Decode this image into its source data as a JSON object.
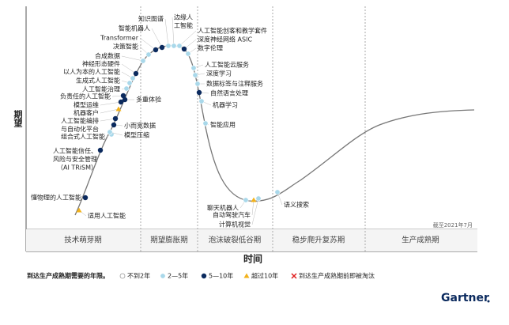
{
  "title_y": "期望",
  "title_x": "时间",
  "note": "截至2021年7月",
  "phases": [
    "技术萌芽期",
    "期望膨胀期",
    "泡沫破裂低谷期",
    "稳步爬升复苏期",
    "生产成熟期"
  ],
  "legend": {
    "title": "到达生产成熟期需要的年限。",
    "items": [
      "不到2年",
      "2—5年",
      "5—10年",
      "超过10年",
      "到达生产成熟期前即被淘汰"
    ]
  },
  "logo": "Gartner",
  "nodes": [
    {
      "lines": [
        "知识图谱"
      ],
      "years": "2—5年"
    },
    {
      "lines": [
        "智能机器人"
      ],
      "years": "5—10年"
    },
    {
      "lines": [
        "Transformer"
      ],
      "years": "5—10年"
    },
    {
      "lines": [
        "决策智能"
      ],
      "years": "2—5年"
    },
    {
      "lines": [
        "合成数据"
      ],
      "years": "2—5年"
    },
    {
      "lines": [
        "神经形态硬件"
      ],
      "years": "5—10年"
    },
    {
      "lines": [
        "以人为本的人工智能"
      ],
      "years": "2—5年"
    },
    {
      "lines": [
        "生成式人工智能"
      ],
      "years": "2—5年"
    },
    {
      "lines": [
        "人工智能治理"
      ],
      "years": "2—5年"
    },
    {
      "lines": [
        "负责任的人工智能"
      ],
      "years": "5—10年"
    },
    {
      "lines": [
        "多重体验"
      ],
      "years": "5—10年"
    },
    {
      "lines": [
        "模型运维"
      ],
      "years": "5—10年"
    },
    {
      "lines": [
        "机器客户"
      ],
      "years": "超过10年"
    },
    {
      "lines": [
        "人工智能编排",
        "与自动化平台"
      ],
      "years": "5—10年"
    },
    {
      "lines": [
        "小而宽数据"
      ],
      "years": "5—10年"
    },
    {
      "lines": [
        "组合式人工智能"
      ],
      "years": "2—5年"
    },
    {
      "lines": [
        "模型压缩"
      ],
      "years": "2—5年"
    },
    {
      "lines": [
        "人工智能信任、",
        "风险与安全管理",
        "（AI TRiSM）"
      ],
      "years": "5—10年"
    },
    {
      "lines": [
        "懂物理的人工智能"
      ],
      "years": "5—10年"
    },
    {
      "lines": [
        "适用人工智能"
      ],
      "years": "超过10年"
    },
    {
      "lines": [
        "边缘人",
        "工智能"
      ],
      "years": "2—5年"
    },
    {
      "lines": [
        "人工智能创客和教学套件"
      ],
      "years": "2—5年"
    },
    {
      "lines": [
        "深度神经网络 ASIC"
      ],
      "years": "5—10年"
    },
    {
      "lines": [
        "数字伦理"
      ],
      "years": "2—5年"
    },
    {
      "lines": [
        "人工智能云服务"
      ],
      "years": "2—5年"
    },
    {
      "lines": [
        "深度学习"
      ],
      "years": "2—5年"
    },
    {
      "lines": [
        "数据标签与注释服务"
      ],
      "years": "2—5年"
    },
    {
      "lines": [
        "自然语言处理"
      ],
      "years": "5—10年"
    },
    {
      "lines": [
        "机器学习"
      ],
      "years": "2—5年"
    },
    {
      "lines": [
        "智能应用"
      ],
      "years": "2—5年"
    },
    {
      "lines": [
        "聊天机器人"
      ],
      "years": "2—5年"
    },
    {
      "lines": [
        "自动驾驶汽车"
      ],
      "years": "超过10年"
    },
    {
      "lines": [
        "计算机视觉"
      ],
      "years": "2—5年"
    },
    {
      "lines": [
        "语义搜索"
      ],
      "years": "2—5年"
    }
  ]
}
